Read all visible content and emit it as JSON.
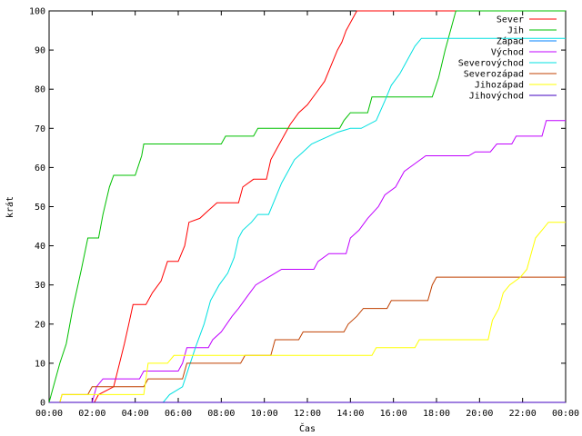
{
  "chart_data": {
    "type": "line",
    "title": "",
    "xlabel": "Čas",
    "ylabel": "krát",
    "xlim": [
      0,
      24
    ],
    "ylim": [
      0,
      100
    ],
    "x_ticks": [
      {
        "value": 0,
        "label": "00:00"
      },
      {
        "value": 2,
        "label": "02:00"
      },
      {
        "value": 4,
        "label": "04:00"
      },
      {
        "value": 6,
        "label": "06:00"
      },
      {
        "value": 8,
        "label": "08:00"
      },
      {
        "value": 10,
        "label": "10:00"
      },
      {
        "value": 12,
        "label": "12:00"
      },
      {
        "value": 14,
        "label": "14:00"
      },
      {
        "value": 16,
        "label": "16:00"
      },
      {
        "value": 18,
        "label": "18:00"
      },
      {
        "value": 20,
        "label": "20:00"
      },
      {
        "value": 22,
        "label": "22:00"
      },
      {
        "value": 24,
        "label": "00:00"
      }
    ],
    "y_ticks": [
      0,
      10,
      20,
      30,
      40,
      50,
      60,
      70,
      80,
      90,
      100
    ],
    "grid": false,
    "legend_position": "top-right",
    "series": [
      {
        "name": "Sever",
        "color": "#ff0000",
        "points": [
          [
            0,
            0
          ],
          [
            2.1,
            0
          ],
          [
            2.3,
            2
          ],
          [
            3.0,
            4
          ],
          [
            3.5,
            15
          ],
          [
            3.7,
            20
          ],
          [
            3.9,
            25
          ],
          [
            4.5,
            25
          ],
          [
            4.8,
            28
          ],
          [
            5.2,
            31
          ],
          [
            5.5,
            36
          ],
          [
            6.0,
            36
          ],
          [
            6.3,
            40
          ],
          [
            6.5,
            46
          ],
          [
            7.0,
            47
          ],
          [
            7.4,
            49
          ],
          [
            7.8,
            51
          ],
          [
            8.8,
            51
          ],
          [
            9.0,
            55
          ],
          [
            9.5,
            57
          ],
          [
            10.1,
            57
          ],
          [
            10.3,
            62
          ],
          [
            10.6,
            65
          ],
          [
            10.9,
            68
          ],
          [
            11.2,
            71
          ],
          [
            11.6,
            74
          ],
          [
            12.0,
            76
          ],
          [
            12.4,
            79
          ],
          [
            12.8,
            82
          ],
          [
            13.1,
            86
          ],
          [
            13.4,
            90
          ],
          [
            13.6,
            92
          ],
          [
            13.8,
            95
          ],
          [
            14.1,
            98
          ],
          [
            14.3,
            100
          ],
          [
            24,
            100
          ]
        ]
      },
      {
        "name": "Jih",
        "color": "#00c000",
        "points": [
          [
            0,
            0
          ],
          [
            0.2,
            4
          ],
          [
            0.5,
            10
          ],
          [
            0.8,
            15
          ],
          [
            1.1,
            24
          ],
          [
            1.5,
            34
          ],
          [
            1.8,
            42
          ],
          [
            2.3,
            42
          ],
          [
            2.5,
            48
          ],
          [
            2.8,
            55
          ],
          [
            3.0,
            58
          ],
          [
            4.0,
            58
          ],
          [
            4.3,
            63
          ],
          [
            4.4,
            66
          ],
          [
            8.0,
            66
          ],
          [
            8.2,
            68
          ],
          [
            9.5,
            68
          ],
          [
            9.7,
            70
          ],
          [
            13.5,
            70
          ],
          [
            13.7,
            72
          ],
          [
            14.0,
            74
          ],
          [
            14.8,
            74
          ],
          [
            15.0,
            78
          ],
          [
            17.8,
            78
          ],
          [
            18.1,
            83
          ],
          [
            18.4,
            90
          ],
          [
            18.7,
            96
          ],
          [
            18.9,
            100
          ],
          [
            24,
            100
          ]
        ]
      },
      {
        "name": "Západ",
        "color": "#0080ff",
        "points": [
          [
            0,
            0
          ],
          [
            24,
            0
          ]
        ]
      },
      {
        "name": "Východ",
        "color": "#c000ff",
        "points": [
          [
            0,
            0
          ],
          [
            2.0,
            0
          ],
          [
            2.2,
            4
          ],
          [
            2.5,
            6
          ],
          [
            4.2,
            6
          ],
          [
            4.4,
            8
          ],
          [
            6.0,
            8
          ],
          [
            6.2,
            10
          ],
          [
            6.4,
            14
          ],
          [
            7.4,
            14
          ],
          [
            7.6,
            16
          ],
          [
            8.0,
            18
          ],
          [
            8.5,
            22
          ],
          [
            8.8,
            24
          ],
          [
            9.2,
            27
          ],
          [
            9.6,
            30
          ],
          [
            10.2,
            32
          ],
          [
            10.8,
            34
          ],
          [
            12.3,
            34
          ],
          [
            12.5,
            36
          ],
          [
            13.0,
            38
          ],
          [
            13.8,
            38
          ],
          [
            14.0,
            42
          ],
          [
            14.4,
            44
          ],
          [
            14.8,
            47
          ],
          [
            15.3,
            50
          ],
          [
            15.6,
            53
          ],
          [
            16.1,
            55
          ],
          [
            16.5,
            59
          ],
          [
            17.0,
            61
          ],
          [
            17.5,
            63
          ],
          [
            19.5,
            63
          ],
          [
            19.8,
            64
          ],
          [
            20.5,
            64
          ],
          [
            20.8,
            66
          ],
          [
            21.5,
            66
          ],
          [
            21.7,
            68
          ],
          [
            22.9,
            68
          ],
          [
            23.1,
            72
          ],
          [
            24,
            72
          ]
        ]
      },
      {
        "name": "Severovýchod",
        "color": "#00e0e0",
        "points": [
          [
            0,
            0
          ],
          [
            5.3,
            0
          ],
          [
            5.6,
            2
          ],
          [
            6.2,
            4
          ],
          [
            6.5,
            9
          ],
          [
            6.8,
            14
          ],
          [
            7.2,
            20
          ],
          [
            7.5,
            26
          ],
          [
            7.9,
            30
          ],
          [
            8.3,
            33
          ],
          [
            8.6,
            37
          ],
          [
            8.8,
            42
          ],
          [
            9.0,
            44
          ],
          [
            9.4,
            46
          ],
          [
            9.7,
            48
          ],
          [
            10.2,
            48
          ],
          [
            10.5,
            52
          ],
          [
            10.8,
            56
          ],
          [
            11.1,
            59
          ],
          [
            11.4,
            62
          ],
          [
            11.8,
            64
          ],
          [
            12.2,
            66
          ],
          [
            12.6,
            67
          ],
          [
            13.0,
            68
          ],
          [
            13.4,
            69
          ],
          [
            14.0,
            70
          ],
          [
            14.5,
            70
          ],
          [
            15.2,
            72
          ],
          [
            15.6,
            77
          ],
          [
            15.9,
            81
          ],
          [
            16.3,
            84
          ],
          [
            16.6,
            87
          ],
          [
            17.0,
            91
          ],
          [
            17.3,
            93
          ],
          [
            24,
            93
          ]
        ]
      },
      {
        "name": "Severozápad",
        "color": "#c04000",
        "points": [
          [
            0,
            0
          ],
          [
            0.5,
            0
          ],
          [
            0.6,
            2
          ],
          [
            1.8,
            2
          ],
          [
            2.0,
            4
          ],
          [
            4.4,
            4
          ],
          [
            4.6,
            6
          ],
          [
            6.2,
            6
          ],
          [
            6.4,
            10
          ],
          [
            8.9,
            10
          ],
          [
            9.1,
            12
          ],
          [
            10.3,
            12
          ],
          [
            10.5,
            16
          ],
          [
            11.6,
            16
          ],
          [
            11.8,
            18
          ],
          [
            13.7,
            18
          ],
          [
            13.9,
            20
          ],
          [
            14.3,
            22
          ],
          [
            14.6,
            24
          ],
          [
            15.7,
            24
          ],
          [
            15.9,
            26
          ],
          [
            17.6,
            26
          ],
          [
            17.8,
            30
          ],
          [
            18.0,
            32
          ],
          [
            24,
            32
          ]
        ]
      },
      {
        "name": "Jihozápad",
        "color": "#ffff00",
        "points": [
          [
            0,
            0
          ],
          [
            0.5,
            0
          ],
          [
            0.6,
            2
          ],
          [
            4.4,
            2
          ],
          [
            4.6,
            10
          ],
          [
            5.5,
            10
          ],
          [
            5.8,
            12
          ],
          [
            15.0,
            12
          ],
          [
            15.2,
            14
          ],
          [
            17.0,
            14
          ],
          [
            17.2,
            16
          ],
          [
            20.4,
            16
          ],
          [
            20.6,
            21
          ],
          [
            20.9,
            24
          ],
          [
            21.1,
            28
          ],
          [
            21.4,
            30
          ],
          [
            21.9,
            32
          ],
          [
            22.2,
            34
          ],
          [
            22.4,
            38
          ],
          [
            22.6,
            42
          ],
          [
            22.9,
            44
          ],
          [
            23.2,
            46
          ],
          [
            24,
            46
          ]
        ]
      },
      {
        "name": "Jihovýchod",
        "color": "#4000c0",
        "points": [
          [
            0,
            0
          ],
          [
            24,
            0
          ]
        ]
      }
    ]
  }
}
